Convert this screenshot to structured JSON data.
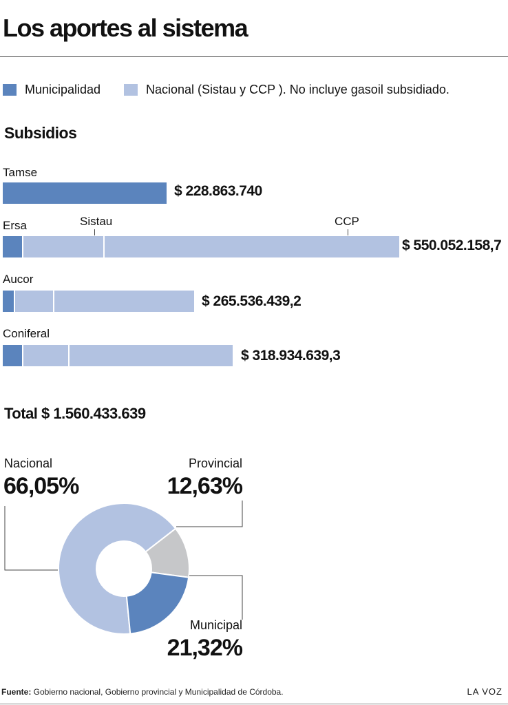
{
  "title": "Los aportes al sistema",
  "colors": {
    "municipal": "#5b84bd",
    "nacional": "#b2c2e1",
    "provincial": "#c6c7c9"
  },
  "legend": [
    {
      "label": "Municipalidad",
      "color": "#5b84bd"
    },
    {
      "label": "Nacional (Sistau y CCP ). No incluye gasoil subsidiado.",
      "color": "#b2c2e1"
    }
  ],
  "bar_section": {
    "heading": "Subsidios"
  },
  "pie_section": {
    "total": "Total $ 1.560.433.639"
  },
  "source": {
    "label": "Fuente:",
    "text": " Gobierno nacional, Gobierno provincial y Municipalidad de Córdoba."
  },
  "brand": "LA VOZ",
  "chart_data": [
    {
      "type": "bar",
      "orientation": "horizontal",
      "stacked": true,
      "title": "Subsidios",
      "segment_labels": [
        "Sistau",
        "CCP"
      ],
      "categories": [
        "Tamse",
        "Ersa",
        "Aucor",
        "Coniferal"
      ],
      "totals": [
        "$ 228.863.740",
        "$ 550.052.158,7",
        "$ 265.536.439,2",
        "$ 318.934.639,3"
      ],
      "total_values": [
        228863740,
        550052158.7,
        265536439.2,
        318934639.3
      ],
      "series": [
        {
          "name": "Municipalidad",
          "values": [
            228863740,
            29000000,
            17000000,
            29000000
          ]
        },
        {
          "name": "Sistau",
          "values": [
            0,
            112000000,
            55000000,
            64000000
          ]
        },
        {
          "name": "CCP",
          "values": [
            0,
            409052158.7,
            193536439.2,
            225934639.3
          ]
        }
      ]
    },
    {
      "type": "pie",
      "donut": true,
      "slices": [
        {
          "name": "Nacional",
          "value": 66.05,
          "label": "66,05%",
          "color": "#b2c2e1"
        },
        {
          "name": "Provincial",
          "value": 12.63,
          "label": "12,63%",
          "color": "#c6c7c9"
        },
        {
          "name": "Municipal",
          "value": 21.32,
          "label": "21,32%",
          "color": "#5b84bd"
        }
      ]
    }
  ]
}
